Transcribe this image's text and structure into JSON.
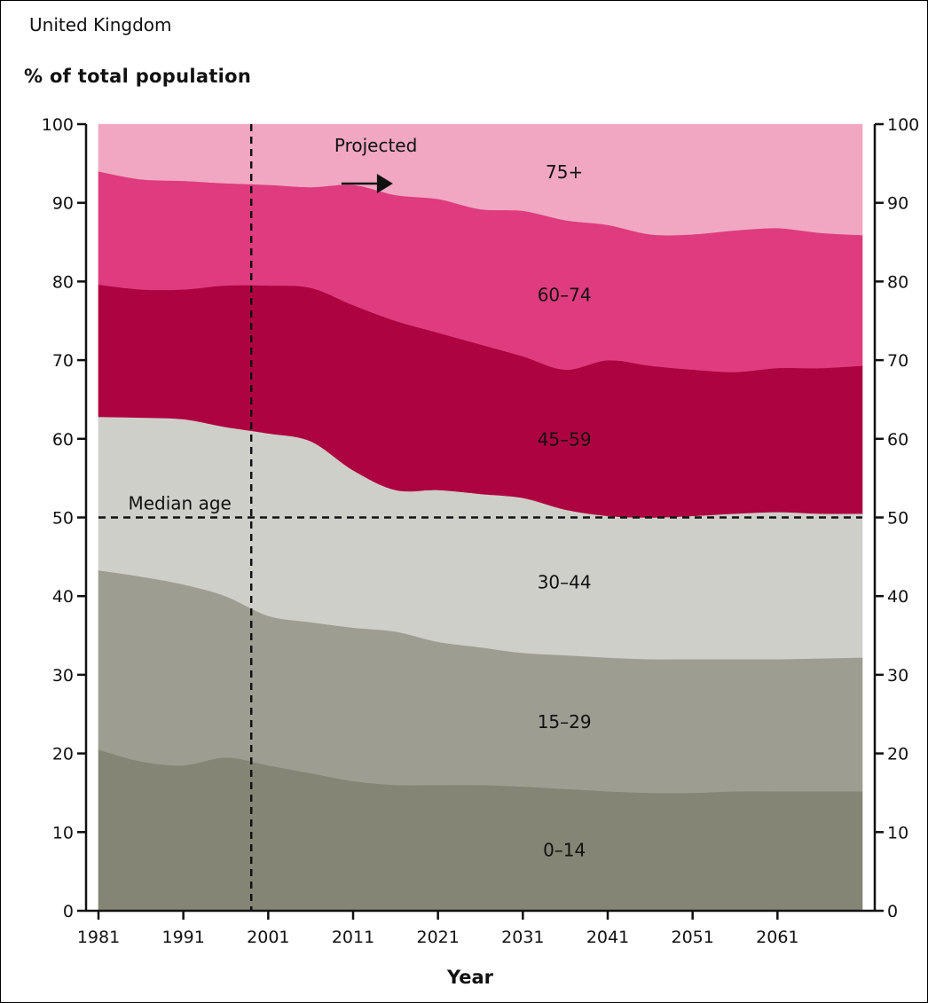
{
  "header": {
    "region": "United Kingdom",
    "unit": "% of total population"
  },
  "chart_data": {
    "type": "area",
    "stacked": true,
    "xlabel": "Year",
    "ylabel": "% of total population",
    "xlim": [
      1981,
      2071
    ],
    "ylim": [
      0,
      100
    ],
    "x_ticks": [
      "1981",
      "1991",
      "2001",
      "2011",
      "2021",
      "2031",
      "2041",
      "2051",
      "2061"
    ],
    "y_ticks": [
      "0",
      "10",
      "20",
      "30",
      "40",
      "50",
      "60",
      "70",
      "80",
      "90",
      "100"
    ],
    "x": [
      1981,
      1986,
      1991,
      1996,
      2001,
      2006,
      2011,
      2016,
      2021,
      2026,
      2031,
      2036,
      2041,
      2046,
      2051,
      2056,
      2061,
      2066,
      2071
    ],
    "series": [
      {
        "name": "0–14",
        "color": "#858575",
        "values": [
          20.5,
          19.0,
          18.5,
          19.5,
          18.5,
          17.5,
          16.5,
          16.0,
          16.0,
          16.0,
          15.8,
          15.5,
          15.2,
          15.0,
          15.0,
          15.2,
          15.2,
          15.2,
          15.2
        ]
      },
      {
        "name": "15–29",
        "color": "#9d9d91",
        "values": [
          22.8,
          23.5,
          23.0,
          20.5,
          19.0,
          19.2,
          19.5,
          19.5,
          18.2,
          17.5,
          17.0,
          17.0,
          17.0,
          17.0,
          17.0,
          16.8,
          16.8,
          16.9,
          17.0
        ]
      },
      {
        "name": "30–44",
        "color": "#cfcfca",
        "values": [
          19.5,
          20.2,
          21.0,
          21.5,
          23.2,
          23.0,
          20.0,
          18.0,
          19.3,
          19.5,
          19.7,
          18.5,
          18.0,
          18.0,
          18.2,
          18.5,
          18.7,
          18.4,
          18.3
        ]
      },
      {
        "name": "45–59",
        "color": "#ad0340",
        "values": [
          16.8,
          16.3,
          16.5,
          18.0,
          18.8,
          19.5,
          21.0,
          21.5,
          20.0,
          19.0,
          18.0,
          17.8,
          19.8,
          19.3,
          18.6,
          18.0,
          18.3,
          18.5,
          18.8
        ]
      },
      {
        "name": "60–74",
        "color": "#de3c7e",
        "values": [
          14.4,
          14.0,
          13.8,
          13.0,
          12.8,
          12.8,
          15.3,
          16.0,
          17.0,
          17.2,
          18.5,
          19.0,
          17.2,
          16.7,
          17.2,
          18.0,
          17.8,
          17.2,
          16.6
        ]
      },
      {
        "name": "75+",
        "color": "#f1a7c2",
        "values": [
          6.0,
          7.0,
          7.2,
          7.5,
          7.7,
          8.0,
          7.7,
          9.0,
          9.5,
          10.8,
          11.0,
          12.2,
          12.8,
          14.0,
          14.0,
          13.5,
          13.2,
          13.8,
          14.1
        ]
      }
    ],
    "reference_lines": [
      {
        "orientation": "vertical",
        "x": 1999,
        "style": "dashed"
      },
      {
        "orientation": "horizontal",
        "y": 50,
        "style": "dashed",
        "label": "Median age"
      }
    ],
    "annotations": [
      {
        "text": "Projected",
        "x": 2009,
        "y": 96.5,
        "arrow": true
      }
    ],
    "grid": false,
    "legend": "inline-labels"
  }
}
